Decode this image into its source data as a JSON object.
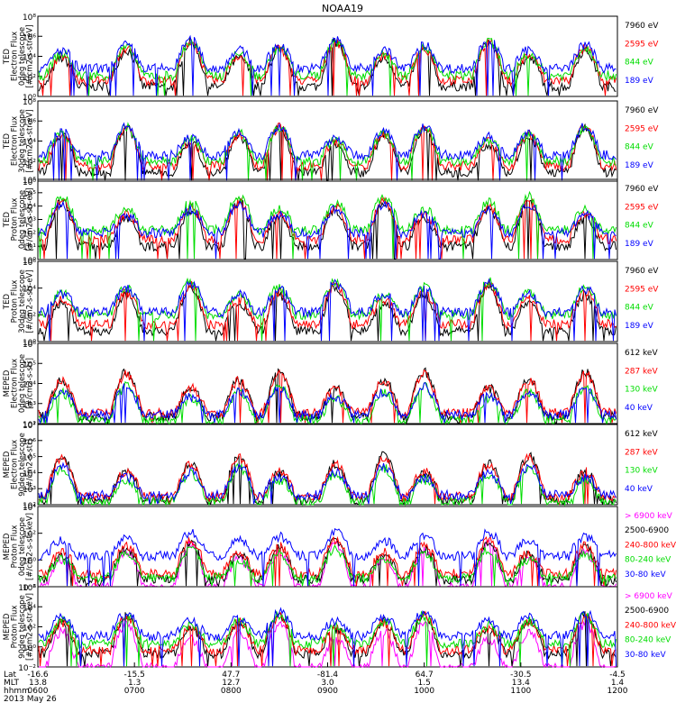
{
  "chart_data": {
    "type": "line",
    "title": "NOAA19",
    "x_range_hhmm": [
      "0600",
      "1200"
    ],
    "x_labels": {
      "row_titles": [
        "Lat",
        "MLT",
        "hhmm",
        "2013 May 26"
      ],
      "ticks": [
        {
          "lat": "-16.6",
          "mlt": "13.8",
          "hhmm": "0600"
        },
        {
          "lat": "-15.5",
          "mlt": "1.3",
          "hhmm": "0700"
        },
        {
          "lat": "47.7",
          "mlt": "12.7",
          "hhmm": "0800"
        },
        {
          "lat": "-81.4",
          "mlt": "3.0",
          "hhmm": "0900"
        },
        {
          "lat": "64.7",
          "mlt": "1.5",
          "hhmm": "1000"
        },
        {
          "lat": "-30.5",
          "mlt": "13.4",
          "hhmm": "1100"
        },
        {
          "lat": "-4.5",
          "mlt": "1.4",
          "hhmm": "1200"
        }
      ]
    },
    "panels": [
      {
        "ylabel": [
          "TED",
          "Electron Flux",
          "0deg telescope",
          "[#/cm2-s-str-eV]"
        ],
        "yticks": [
          "10⁰",
          "10²",
          "10⁴",
          "10⁶",
          "10⁸"
        ],
        "ylog": [
          0,
          8
        ],
        "series": [
          {
            "name": "7960 eV",
            "color": "#000000",
            "level": 1.0
          },
          {
            "name": "2595 eV",
            "color": "#ff0000",
            "level": 1.6
          },
          {
            "name": "844 eV",
            "color": "#00dd00",
            "level": 2.1
          },
          {
            "name": "189 eV",
            "color": "#0000ff",
            "level": 2.8
          }
        ]
      },
      {
        "ylabel": [
          "TED",
          "Electron Flux",
          "30deg telescope",
          "[#/cm2-s-str-eV]"
        ],
        "yticks": [
          "10⁰",
          "10²",
          "10⁴",
          "10⁶",
          "10⁸"
        ],
        "ylog": [
          0,
          8
        ],
        "series": [
          {
            "name": "7960 eV",
            "color": "#000000",
            "level": 0.9
          },
          {
            "name": "2595 eV",
            "color": "#ff0000",
            "level": 1.5
          },
          {
            "name": "844 eV",
            "color": "#00dd00",
            "level": 2.0
          },
          {
            "name": "189 eV",
            "color": "#0000ff",
            "level": 2.6
          }
        ]
      },
      {
        "ylabel": [
          "TED",
          "Proton Flux",
          "0deg telescope",
          "[#/cm2-s-str-eV]"
        ],
        "yticks": [
          "10⁰",
          "10¹",
          "10²",
          "10³",
          "10⁴",
          "10⁵",
          "10⁶"
        ],
        "ylog": [
          0,
          6
        ],
        "series": [
          {
            "name": "7960 eV",
            "color": "#000000",
            "level": 1.0
          },
          {
            "name": "2595 eV",
            "color": "#ff0000",
            "level": 1.5
          },
          {
            "name": "844 eV",
            "color": "#00dd00",
            "level": 2.2
          },
          {
            "name": "189 eV",
            "color": "#0000ff",
            "level": 2.0
          }
        ]
      },
      {
        "ylabel": [
          "TED",
          "Proton Flux",
          "30deg telescope",
          "[#/cm2-s-str-eV]"
        ],
        "yticks": [
          "10⁰",
          "10²",
          "10⁴",
          "10⁶"
        ],
        "ylog": [
          0,
          6
        ],
        "series": [
          {
            "name": "7960 eV",
            "color": "#000000",
            "level": 0.8
          },
          {
            "name": "2595 eV",
            "color": "#ff0000",
            "level": 1.3
          },
          {
            "name": "844 eV",
            "color": "#00dd00",
            "level": 2.0
          },
          {
            "name": "189 eV",
            "color": "#0000ff",
            "level": 2.2
          }
        ]
      },
      {
        "ylabel": [
          "MEPED",
          "Electron Flux",
          "0deg telescope",
          "[#/cm2-s-str]"
        ],
        "yticks": [
          "10²",
          "10³",
          "10⁴",
          "10⁵",
          "10⁶"
        ],
        "ylog": [
          2,
          6.5
        ],
        "series": [
          {
            "name": "612 keV",
            "color": "#000000",
            "level": 2.4
          },
          {
            "name": "287 keV",
            "color": "#ff0000",
            "level": 2.6
          },
          {
            "name": "130 keV",
            "color": "#00dd00",
            "level": 2.2
          },
          {
            "name": "40 keV",
            "color": "#0000ff",
            "level": 2.5
          }
        ]
      },
      {
        "ylabel": [
          "MEPED",
          "Electron Flux",
          "90deg telescope",
          "[#/cm2-s-str]"
        ],
        "yticks": [
          "10²",
          "10³",
          "10⁴",
          "10⁵",
          "10⁶",
          "10⁷"
        ],
        "ylog": [
          2,
          7
        ],
        "series": [
          {
            "name": "612 keV",
            "color": "#000000",
            "level": 2.3
          },
          {
            "name": "287 keV",
            "color": "#ff0000",
            "level": 2.5
          },
          {
            "name": "130 keV",
            "color": "#00dd00",
            "level": 2.2
          },
          {
            "name": "40 keV",
            "color": "#0000ff",
            "level": 2.6
          }
        ]
      },
      {
        "ylabel": [
          "MEPED",
          "Proton Flux",
          "0deg telescope",
          "[#/cm2-s-str-keV]"
        ],
        "yticks": [
          "10⁻²",
          "10⁰",
          "10²",
          "10⁴"
        ],
        "ylog": [
          -2.5,
          5.5
        ],
        "series": [
          {
            "name": "> 6900 keV",
            "color": "#ff00ff",
            "level": -2.6
          },
          {
            "name": "2500-6900",
            "color": "#000000",
            "level": -1.8
          },
          {
            "name": "240-800 keV",
            "color": "#ff0000",
            "level": -1.2
          },
          {
            "name": "80-240 keV",
            "color": "#00dd00",
            "level": -1.6
          },
          {
            "name": "30-80 keV",
            "color": "#0000ff",
            "level": 0.6
          }
        ]
      },
      {
        "ylabel": [
          "MEPED",
          "Proton Flux",
          "90deg telescope",
          "[#/cm2-s-str-keV]"
        ],
        "yticks": [
          "10⁻²",
          "10⁰",
          "10²",
          "10⁴",
          "10⁶"
        ],
        "ylog": [
          -2.5,
          6.5
        ],
        "series": [
          {
            "name": "> 6900 keV",
            "color": "#ff00ff",
            "level": -2.6
          },
          {
            "name": "2500-6900",
            "color": "#000000",
            "level": -1.0
          },
          {
            "name": "240-800 keV",
            "color": "#ff0000",
            "level": -0.6
          },
          {
            "name": "80-240 keV",
            "color": "#00dd00",
            "level": 0.1
          },
          {
            "name": "30-80 keV",
            "color": "#0000ff",
            "level": 1.0
          }
        ]
      }
    ],
    "passes_hhmm": [
      "0615",
      "0655",
      "0735",
      "0805",
      "0830",
      "0905",
      "0935",
      "1000",
      "1040",
      "1105",
      "1140"
    ],
    "grid": false,
    "legend": "right"
  }
}
